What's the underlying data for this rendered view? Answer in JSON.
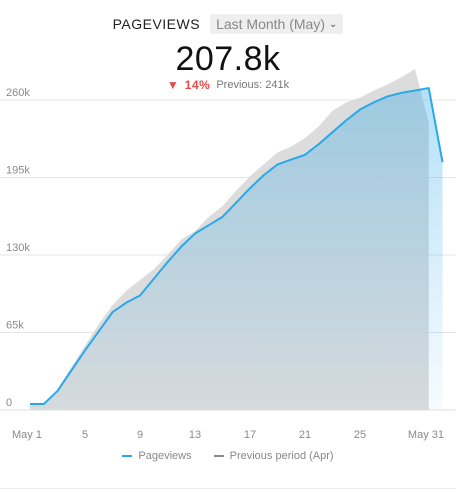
{
  "header": {
    "metric_name": "PAGEVIEWS",
    "period_select": "Last Month (May)",
    "value": "207.8k",
    "delta_pct": "14%",
    "previous": "Previous: 241k"
  },
  "colors": {
    "current": "#29a8ea",
    "previous": "#d6d6d6",
    "down": "#e24b4b"
  },
  "chart_data": {
    "type": "area",
    "ylim": [
      0,
      260000
    ],
    "yticks": [
      0,
      65000,
      130000,
      195000,
      260000
    ],
    "ytick_labels": [
      "0",
      "65k",
      "130k",
      "195k",
      "260k"
    ],
    "xticks": [
      1,
      5,
      9,
      13,
      17,
      21,
      25,
      31
    ],
    "xtick_labels": [
      "May 1",
      "5",
      "9",
      "13",
      "17",
      "21",
      "25",
      "May 31"
    ],
    "series": [
      {
        "name": "Pageviews",
        "x": [
          1,
          2,
          3,
          4,
          5,
          6,
          7,
          8,
          9,
          10,
          11,
          12,
          13,
          14,
          15,
          16,
          17,
          18,
          19,
          20,
          21,
          22,
          23,
          24,
          25,
          26,
          27,
          28,
          29,
          30,
          31
        ],
        "values": [
          5000,
          5000,
          16000,
          33000,
          50000,
          66000,
          82000,
          90000,
          96000,
          110000,
          124000,
          137000,
          148000,
          155000,
          162000,
          174000,
          186000,
          197000,
          206000,
          210000,
          214000,
          223000,
          233000,
          243000,
          252000,
          258000,
          263000,
          266000,
          268000,
          270000,
          207800
        ]
      },
      {
        "name": "Previous period (Apr)",
        "x": [
          1,
          2,
          3,
          4,
          5,
          6,
          7,
          8,
          9,
          10,
          11,
          12,
          13,
          14,
          15,
          16,
          17,
          18,
          19,
          20,
          21,
          22,
          23,
          24,
          25,
          26,
          27,
          28,
          29,
          30
        ],
        "values": [
          6000,
          6000,
          17000,
          36000,
          54000,
          72000,
          88000,
          100000,
          109000,
          118000,
          130000,
          143000,
          150000,
          162000,
          171000,
          184000,
          196000,
          206000,
          216000,
          221000,
          228000,
          238000,
          251000,
          258000,
          262000,
          268000,
          273000,
          279000,
          286000,
          241000
        ]
      }
    ]
  },
  "legend": {
    "current": "Pageviews",
    "previous": "Previous period (Apr)"
  }
}
